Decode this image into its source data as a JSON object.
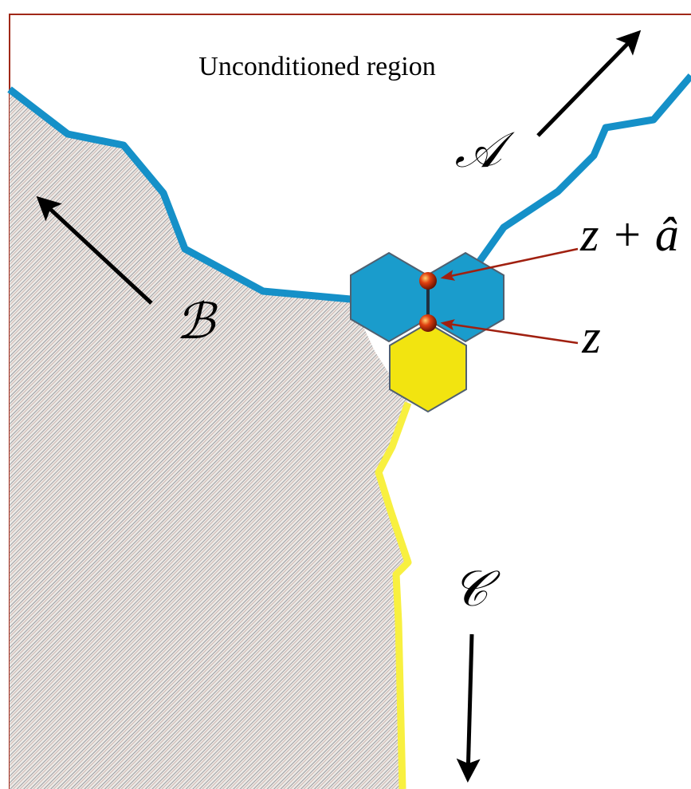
{
  "region_label": "Unconditioned region",
  "labels": {
    "a": "𝒜",
    "b": "ℬ",
    "c": "𝒞",
    "z_plus_a": "z + â",
    "z": "z"
  }
}
